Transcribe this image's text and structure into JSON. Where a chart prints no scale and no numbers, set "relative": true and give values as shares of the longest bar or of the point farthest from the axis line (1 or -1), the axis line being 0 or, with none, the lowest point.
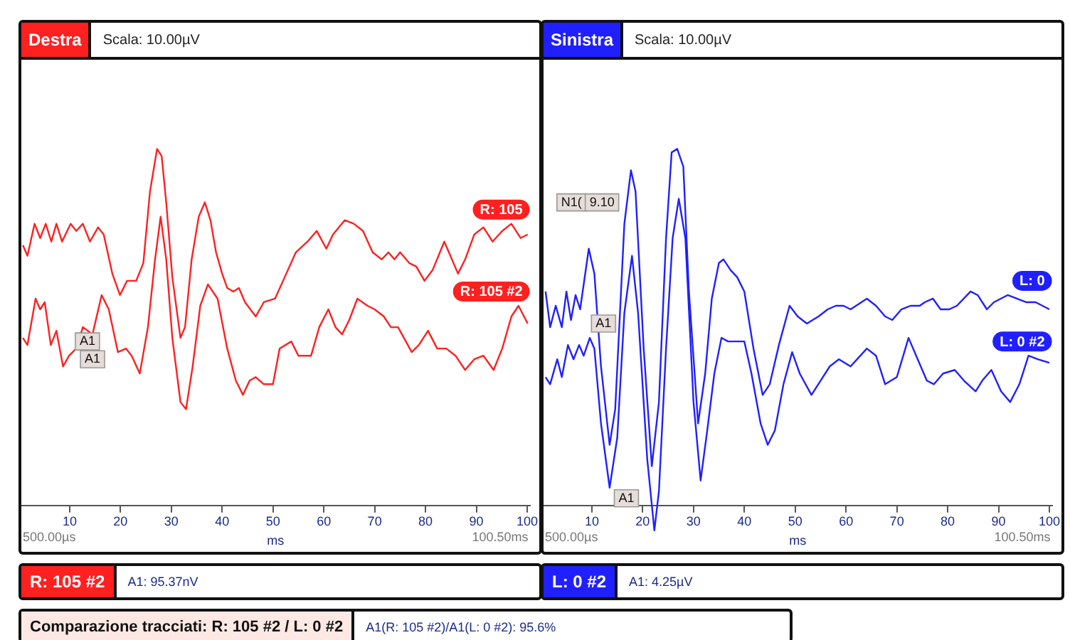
{
  "chart_data": [
    {
      "type": "line",
      "title": "Destra",
      "subtitle": "Scala: 10.00µV",
      "xlabel": "ms",
      "relative": true,
      "legend": false,
      "grid": false,
      "marker": "none",
      "xlim": [
        0.5,
        100.5
      ],
      "xticks": [
        10,
        20,
        30,
        40,
        50,
        60,
        70,
        80,
        90,
        100
      ],
      "series": [
        {
          "name": "R: 105",
          "color": "#ff2020",
          "x": [
            0.8,
            1.7,
            3.1,
            4.2,
            5.3,
            6.4,
            7.4,
            8.5,
            10.2,
            11.3,
            12.6,
            14.0,
            15.6,
            16.7,
            18.4,
            19.9,
            21.3,
            23.1,
            24.5,
            25.8,
            27.2,
            28.1,
            29.0,
            30.2,
            31.8,
            32.7,
            34.0,
            35.4,
            36.6,
            37.7,
            38.8,
            40.0,
            41.0,
            42.2,
            43.3,
            44.5,
            46.6,
            48.2,
            50.4,
            52.3,
            54.5,
            56.8,
            58.6,
            60.5,
            61.8,
            64.1,
            65.9,
            67.7,
            69.6,
            71.4,
            72.7,
            73.9,
            75.0,
            76.8,
            78.2,
            79.8,
            81.4,
            83.7,
            84.6,
            86.4,
            87.8,
            89.6,
            91.4,
            93.2,
            95.1,
            96.9,
            98.7,
            100.1
          ],
          "values": [
            0.73,
            0.7,
            0.79,
            0.75,
            0.79,
            0.74,
            0.79,
            0.74,
            0.79,
            0.77,
            0.79,
            0.74,
            0.78,
            0.76,
            0.65,
            0.59,
            0.63,
            0.63,
            0.68,
            0.88,
            1.0,
            0.98,
            0.85,
            0.64,
            0.47,
            0.5,
            0.69,
            0.81,
            0.85,
            0.8,
            0.71,
            0.65,
            0.61,
            0.6,
            0.61,
            0.57,
            0.53,
            0.57,
            0.58,
            0.64,
            0.71,
            0.74,
            0.77,
            0.72,
            0.76,
            0.8,
            0.79,
            0.77,
            0.71,
            0.69,
            0.71,
            0.69,
            0.71,
            0.68,
            0.67,
            0.63,
            0.66,
            0.74,
            0.71,
            0.65,
            0.69,
            0.76,
            0.78,
            0.74,
            0.77,
            0.79,
            0.75,
            0.76
          ]
        },
        {
          "name": "R: 105 #2",
          "color": "#ff2020",
          "x": [
            0.8,
            1.7,
            3.3,
            4.2,
            5.1,
            6.3,
            7.4,
            8.7,
            9.9,
            11.3,
            12.6,
            14.5,
            16.3,
            17.7,
            19.5,
            21.1,
            22.2,
            23.8,
            25.4,
            26.8,
            27.9,
            29.0,
            30.2,
            31.8,
            32.9,
            34.2,
            35.7,
            37.2,
            39.1,
            41.0,
            42.7,
            44.1,
            45.4,
            46.6,
            48.2,
            50.0,
            51.3,
            53.6,
            55.0,
            56.3,
            57.5,
            59.1,
            60.9,
            62.3,
            63.6,
            65.0,
            66.6,
            68.6,
            70.0,
            71.8,
            73.2,
            74.6,
            77.3,
            78.7,
            80.5,
            82.3,
            84.1,
            85.9,
            87.8,
            89.6,
            91.4,
            93.4,
            95.1,
            96.9,
            98.3,
            100.1
          ],
          "values": [
            0.47,
            0.45,
            0.58,
            0.55,
            0.57,
            0.45,
            0.49,
            0.39,
            0.42,
            0.44,
            0.5,
            0.48,
            0.59,
            0.55,
            0.43,
            0.44,
            0.42,
            0.37,
            0.5,
            0.69,
            0.81,
            0.69,
            0.47,
            0.29,
            0.27,
            0.39,
            0.56,
            0.62,
            0.58,
            0.44,
            0.35,
            0.31,
            0.35,
            0.36,
            0.34,
            0.34,
            0.44,
            0.46,
            0.42,
            0.42,
            0.42,
            0.5,
            0.55,
            0.5,
            0.48,
            0.52,
            0.58,
            0.56,
            0.55,
            0.53,
            0.5,
            0.5,
            0.43,
            0.45,
            0.49,
            0.44,
            0.44,
            0.42,
            0.38,
            0.41,
            0.42,
            0.38,
            0.44,
            0.53,
            0.56,
            0.51
          ]
        }
      ],
      "annotations": [
        "500.00µs",
        "100.50ms",
        {
          "text": "A1",
          "x": 13.5,
          "y": 0.46
        },
        {
          "text": "A1",
          "x": 14.5,
          "y": 0.41
        },
        "R: 105 #2",
        "A1: 95.37nV",
        "Comparazione tracciati: R: 105 #2 / L: 0 #2",
        "A1(R: 105 #2)/A1(L: 0 #2): 95.6%"
      ]
    },
    {
      "type": "line",
      "title": "Sinistra",
      "subtitle": "Scala: 10.00µV",
      "xlabel": "ms",
      "relative": true,
      "legend": false,
      "grid": false,
      "marker": "none",
      "xlim": [
        0.5,
        100.5
      ],
      "xticks": [
        10,
        20,
        30,
        40,
        50,
        60,
        70,
        80,
        90,
        100
      ],
      "series": [
        {
          "name": "L: 0",
          "color": "#2020ff",
          "x": [
            0.9,
            1.8,
            2.9,
            4.1,
            5.0,
            5.9,
            6.8,
            7.7,
            9.4,
            10.5,
            11.8,
            13.5,
            14.6,
            16.4,
            17.7,
            18.6,
            20.2,
            21.8,
            23.2,
            24.6,
            25.7,
            26.8,
            28.0,
            29.1,
            30.9,
            32.3,
            33.6,
            35.0,
            35.9,
            37.3,
            38.6,
            40.0,
            41.8,
            43.6,
            45.0,
            46.8,
            48.9,
            50.5,
            52.3,
            54.6,
            56.4,
            58.0,
            59.5,
            60.9,
            64.1,
            65.9,
            67.7,
            69.1,
            70.9,
            72.7,
            74.5,
            75.5,
            77.1,
            78.6,
            80.3,
            81.8,
            84.5,
            85.9,
            87.7,
            89.1,
            91.8,
            93.6,
            95.4,
            97.3,
            100.0
          ],
          "values": [
            0.6,
            0.5,
            0.56,
            0.5,
            0.6,
            0.52,
            0.59,
            0.55,
            0.72,
            0.65,
            0.39,
            0.17,
            0.27,
            0.79,
            0.94,
            0.88,
            0.44,
            0.11,
            0.29,
            0.75,
            0.99,
            1.0,
            0.95,
            0.6,
            0.23,
            0.37,
            0.58,
            0.68,
            0.69,
            0.66,
            0.64,
            0.6,
            0.44,
            0.31,
            0.34,
            0.45,
            0.56,
            0.53,
            0.51,
            0.53,
            0.55,
            0.56,
            0.56,
            0.55,
            0.58,
            0.56,
            0.53,
            0.52,
            0.55,
            0.56,
            0.56,
            0.57,
            0.58,
            0.55,
            0.55,
            0.56,
            0.6,
            0.59,
            0.55,
            0.57,
            0.59,
            0.58,
            0.57,
            0.57,
            0.55
          ]
        },
        {
          "name": "L: 0 #2",
          "color": "#2020ff",
          "x": [
            0.9,
            1.8,
            3.2,
            4.1,
            5.3,
            6.4,
            7.5,
            8.4,
            9.6,
            10.5,
            11.8,
            13.5,
            15.0,
            16.4,
            17.9,
            19.1,
            20.9,
            22.3,
            23.2,
            24.6,
            25.9,
            27.1,
            28.4,
            30.0,
            31.4,
            32.7,
            34.1,
            35.5,
            36.8,
            38.4,
            40.0,
            41.4,
            43.2,
            44.6,
            46.0,
            47.7,
            49.4,
            50.9,
            53.2,
            55.0,
            56.8,
            58.6,
            60.9,
            64.1,
            65.9,
            67.7,
            70.0,
            72.3,
            74.1,
            75.9,
            77.3,
            79.1,
            81.4,
            83.2,
            85.5,
            86.8,
            88.6,
            90.5,
            92.3,
            94.1,
            95.9,
            97.7,
            100.0
          ],
          "values": [
            0.36,
            0.34,
            0.41,
            0.36,
            0.45,
            0.41,
            0.45,
            0.42,
            0.47,
            0.44,
            0.23,
            0.05,
            0.19,
            0.54,
            0.7,
            0.54,
            0.13,
            -0.07,
            0.04,
            0.44,
            0.75,
            0.86,
            0.75,
            0.29,
            0.07,
            0.21,
            0.37,
            0.47,
            0.46,
            0.46,
            0.46,
            0.37,
            0.23,
            0.17,
            0.21,
            0.34,
            0.43,
            0.37,
            0.31,
            0.35,
            0.39,
            0.41,
            0.39,
            0.44,
            0.42,
            0.34,
            0.36,
            0.47,
            0.41,
            0.35,
            0.34,
            0.37,
            0.38,
            0.35,
            0.32,
            0.35,
            0.38,
            0.32,
            0.29,
            0.34,
            0.42,
            0.41,
            0.4
          ]
        }
      ],
      "annotations": [
        "500.00µs",
        "100.50ms",
        {
          "text": "N1(",
          "x": 6.0,
          "y": 0.85
        },
        {
          "text": "9.10",
          "x": 12.0,
          "y": 0.85
        },
        {
          "text": "A1",
          "x": 12.3,
          "y": 0.51
        },
        {
          "text": "A1",
          "x": 16.8,
          "y": 0.02
        },
        "L: 0 #2",
        "A1: 4.25µV"
      ]
    }
  ]
}
